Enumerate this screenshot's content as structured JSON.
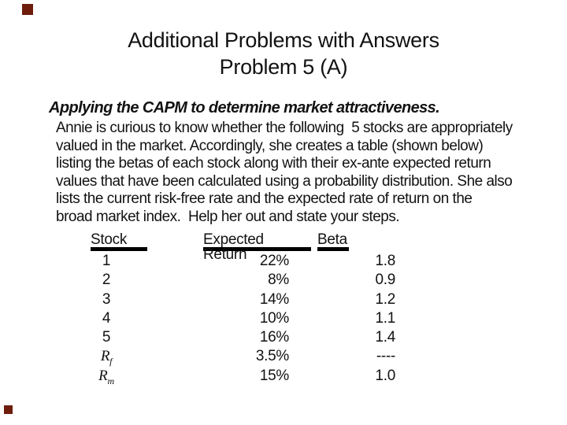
{
  "title": {
    "line1": "Additional Problems with Answers",
    "line2": "Problem 5 (A)"
  },
  "heading": "Applying the CAPM to determine market attractiveness.",
  "body_lines": [
    "Annie is curious to know whether the following  5 stocks are appropriately",
    "valued in the market. Accordingly, she creates a table (shown below)",
    "listing the betas of each stock along with their ex-ante expected return",
    "values that have been calculated using a probability distribution. She also",
    "lists the current risk-free rate and the expected rate of return on the",
    "broad market index.  Help her out and state your steps."
  ],
  "table": {
    "headers": {
      "stock": "Stock",
      "expected_return": "Expected Return",
      "beta": "Beta"
    },
    "rows": [
      {
        "stock": "1",
        "sym": "",
        "sub": "",
        "er": "22%",
        "beta": "1.8"
      },
      {
        "stock": "2",
        "sym": "",
        "sub": "",
        "er": "8%",
        "beta": "0.9"
      },
      {
        "stock": "3",
        "sym": "",
        "sub": "",
        "er": "14%",
        "beta": "1.2"
      },
      {
        "stock": "4",
        "sym": "",
        "sub": "",
        "er": "10%",
        "beta": "1.1"
      },
      {
        "stock": "5",
        "sym": "",
        "sub": "",
        "er": "16%",
        "beta": "1.4"
      },
      {
        "stock": "",
        "sym": "R",
        "sub": "f",
        "er": "3.5%",
        "beta": "----"
      },
      {
        "stock": "",
        "sym": "R",
        "sub": "m",
        "er": "15%",
        "beta": "1.0"
      }
    ]
  },
  "decor": {
    "accent_color": "#6E1D0C",
    "square_style": "background-color:#6E1D0C"
  }
}
